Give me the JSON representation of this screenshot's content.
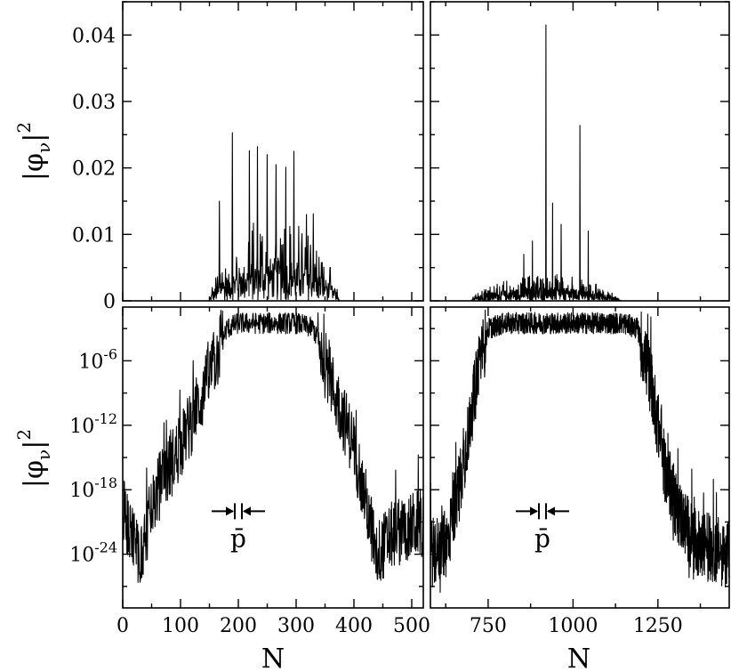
{
  "chart_data": [
    {
      "id": "top-left",
      "type": "line",
      "ylabel": "|φ_ν|^2",
      "xlim": [
        0,
        520
      ],
      "ylim": [
        0,
        0.045
      ],
      "yticks": [
        0,
        0.01,
        0.02,
        0.03,
        0.04
      ],
      "yticklabels": [
        "0",
        "0.01",
        "0.02",
        "0.03",
        "0.04"
      ],
      "yscale": "linear",
      "xticks": [
        0,
        100,
        200,
        300,
        400,
        500
      ],
      "envelope": {
        "start": 150,
        "end": 375,
        "typical_peak": 0.013,
        "spikes": [
          [
            167,
            0.015
          ],
          [
            190,
            0.0253
          ],
          [
            219,
            0.0226
          ],
          [
            233,
            0.0232
          ],
          [
            250,
            0.022
          ],
          [
            265,
            0.0205
          ],
          [
            282,
            0.0201
          ],
          [
            296,
            0.0225
          ],
          [
            318,
            0.013
          ],
          [
            330,
            0.0131
          ]
        ]
      }
    },
    {
      "id": "top-right",
      "type": "line",
      "xlim": [
        580,
        1460
      ],
      "ylim": [
        0,
        0.045
      ],
      "yticks": [
        0,
        0.01,
        0.02,
        0.03,
        0.04
      ],
      "yscale": "linear",
      "xticks": [
        750,
        1000,
        1250
      ],
      "envelope": {
        "start": 700,
        "end": 1140,
        "typical_peak": 0.004,
        "spikes": [
          [
            855,
            0.007
          ],
          [
            920,
            0.0415
          ],
          [
            940,
            0.0147
          ],
          [
            965,
            0.0115
          ],
          [
            1020,
            0.0264
          ],
          [
            1045,
            0.0105
          ],
          [
            880,
            0.009
          ]
        ]
      }
    },
    {
      "id": "bottom-left",
      "type": "line",
      "ylabel": "|φ_ν|^2",
      "xlabel": "N",
      "xlim": [
        0,
        520
      ],
      "yscale": "log",
      "ylim_log10": [
        -29,
        -1
      ],
      "yticks_log10": [
        -24,
        -18,
        -12,
        -6
      ],
      "yticklabels": [
        "10^-24",
        "10^-18",
        "10^-12",
        "10^-6"
      ],
      "xticks": [
        0,
        100,
        200,
        300,
        400,
        500
      ],
      "xticklabels": [
        "0",
        "100",
        "200",
        "300",
        "400",
        "500"
      ],
      "profile_log10": [
        [
          0,
          -20
        ],
        [
          30,
          -24
        ],
        [
          60,
          -18
        ],
        [
          100,
          -14
        ],
        [
          140,
          -9
        ],
        [
          180,
          -3
        ],
        [
          200,
          -2.5
        ],
        [
          300,
          -2.5
        ],
        [
          330,
          -3
        ],
        [
          360,
          -8
        ],
        [
          400,
          -14
        ],
        [
          440,
          -24
        ],
        [
          470,
          -22
        ],
        [
          520,
          -21
        ]
      ],
      "marker_label": "p̄",
      "marker_x": 200,
      "marker_log10": -20
    },
    {
      "id": "bottom-right",
      "type": "line",
      "xlabel": "N",
      "xlim": [
        580,
        1460
      ],
      "yscale": "log",
      "ylim_log10": [
        -29,
        -1
      ],
      "yticks_log10": [
        -24,
        -18,
        -12,
        -6
      ],
      "xticks": [
        750,
        1000,
        1250
      ],
      "xticklabels": [
        "750",
        "1000",
        "1250"
      ],
      "profile_log10": [
        [
          580,
          -24
        ],
        [
          630,
          -23
        ],
        [
          680,
          -15
        ],
        [
          720,
          -7
        ],
        [
          750,
          -3
        ],
        [
          800,
          -2.5
        ],
        [
          1150,
          -2.5
        ],
        [
          1190,
          -3
        ],
        [
          1230,
          -8
        ],
        [
          1270,
          -16
        ],
        [
          1310,
          -20
        ],
        [
          1360,
          -23
        ],
        [
          1460,
          -24
        ]
      ],
      "marker_label": "p̄",
      "marker_x": 910,
      "marker_log10": -20
    }
  ]
}
